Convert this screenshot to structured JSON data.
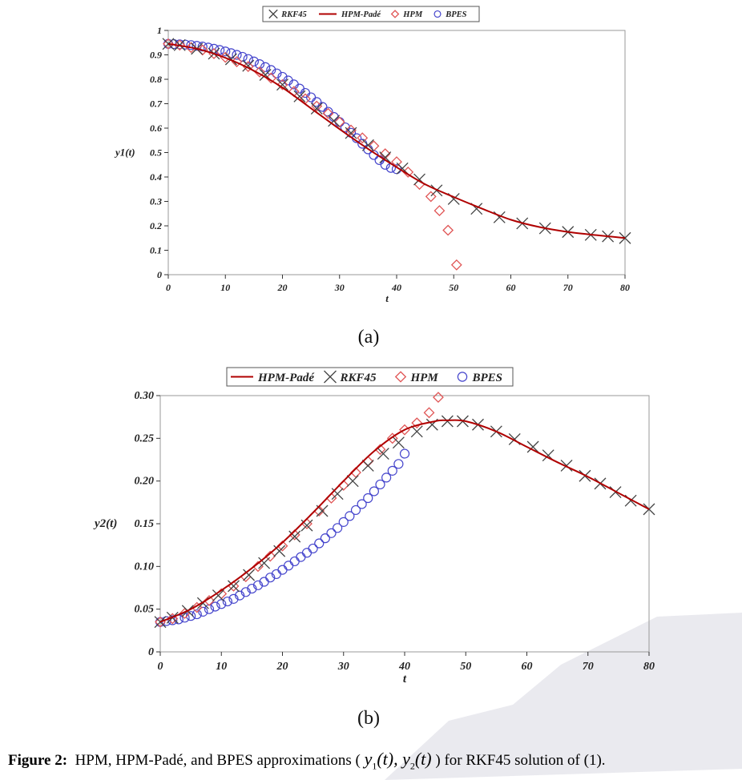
{
  "figure": {
    "label_a": "(a)",
    "label_b": "(b)",
    "caption_prefix": "Figure 2:",
    "caption_text": "HPM, HPM-Padé, and BPES approximations (",
    "caption_math": "y1(t), y2(t)",
    "caption_suffix": ") for RKF45 solution of (1)."
  },
  "chart_data": [
    {
      "type": "line",
      "panel": "a",
      "xlabel": "t",
      "ylabel": "y1(t)",
      "xlim": [
        0,
        80
      ],
      "ylim": [
        0,
        1
      ],
      "x_ticks": [
        "0",
        "10",
        "20",
        "30",
        "40",
        "50",
        "60",
        "70",
        "80"
      ],
      "y_ticks": [
        "0",
        "0.1",
        "0.2",
        "0.3",
        "0.4",
        "0.5",
        "0.6",
        "0.7",
        "0.8",
        "0.9",
        "1"
      ],
      "grid": false,
      "legend_position": "top-center",
      "legend": [
        "RKF45",
        "HPM-Padé",
        "HPM",
        "BPES"
      ],
      "colors": {
        "RKF45": "#444444",
        "HPM-Padé": "#b00000",
        "HPM": "#e05555",
        "BPES": "#4444cc"
      },
      "series": [
        {
          "name": "HPM-Padé",
          "style": "line",
          "x": [
            0,
            5,
            10,
            15,
            20,
            25,
            30,
            35,
            40,
            45,
            50,
            55,
            60,
            65,
            70,
            75,
            80
          ],
          "y": [
            0.945,
            0.925,
            0.888,
            0.835,
            0.766,
            0.681,
            0.596,
            0.515,
            0.44,
            0.37,
            0.318,
            0.27,
            0.225,
            0.195,
            0.175,
            0.162,
            0.15
          ]
        },
        {
          "name": "RKF45",
          "style": "marker-x",
          "x": [
            0,
            2,
            5,
            8,
            11,
            14,
            17,
            20,
            23,
            26,
            29,
            32,
            35,
            38,
            41,
            44,
            47,
            50,
            54,
            58,
            62,
            66,
            70,
            74,
            77,
            80
          ],
          "y": [
            0.945,
            0.94,
            0.925,
            0.905,
            0.882,
            0.855,
            0.818,
            0.778,
            0.73,
            0.68,
            0.63,
            0.58,
            0.53,
            0.48,
            0.435,
            0.39,
            0.345,
            0.31,
            0.27,
            0.235,
            0.21,
            0.19,
            0.175,
            0.163,
            0.157,
            0.15
          ]
        },
        {
          "name": "HPM",
          "style": "marker-diamond",
          "x": [
            0,
            2,
            4,
            6,
            8,
            10,
            12,
            14,
            16,
            18,
            20,
            22,
            24,
            26,
            28,
            30,
            32,
            34,
            36,
            38,
            40,
            42,
            44,
            46,
            47.5,
            49,
            50.5
          ],
          "y": [
            0.945,
            0.94,
            0.93,
            0.92,
            0.905,
            0.89,
            0.872,
            0.852,
            0.83,
            0.805,
            0.778,
            0.75,
            0.72,
            0.69,
            0.66,
            0.625,
            0.592,
            0.56,
            0.527,
            0.495,
            0.462,
            0.42,
            0.37,
            0.32,
            0.262,
            0.182,
            0.04
          ]
        },
        {
          "name": "BPES",
          "style": "marker-circle",
          "x": [
            0,
            1,
            2,
            3,
            4,
            5,
            6,
            7,
            8,
            9,
            10,
            11,
            12,
            13,
            14,
            15,
            16,
            17,
            18,
            19,
            20,
            21,
            22,
            23,
            24,
            25,
            26,
            27,
            28,
            29,
            30,
            31,
            32,
            33,
            34,
            35,
            36,
            37,
            38,
            39,
            40
          ],
          "y": [
            0.945,
            0.944,
            0.943,
            0.942,
            0.94,
            0.937,
            0.934,
            0.93,
            0.925,
            0.92,
            0.914,
            0.907,
            0.9,
            0.892,
            0.883,
            0.873,
            0.862,
            0.85,
            0.838,
            0.824,
            0.81,
            0.795,
            0.779,
            0.762,
            0.744,
            0.726,
            0.707,
            0.687,
            0.667,
            0.646,
            0.625,
            0.603,
            0.581,
            0.559,
            0.536,
            0.513,
            0.49,
            0.469,
            0.45,
            0.437,
            0.432
          ]
        }
      ]
    },
    {
      "type": "line",
      "panel": "b",
      "xlabel": "t",
      "ylabel": "y2(t)",
      "xlim": [
        0,
        80
      ],
      "ylim": [
        0,
        0.3
      ],
      "x_ticks": [
        "0",
        "10",
        "20",
        "30",
        "40",
        "50",
        "60",
        "70",
        "80"
      ],
      "y_ticks": [
        "0",
        "0.05",
        "0.10",
        "0.15",
        "0.20",
        "0.25",
        "0.30"
      ],
      "grid": false,
      "legend_position": "top-center",
      "legend": [
        "HPM-Padé",
        "RKF45",
        "HPM",
        "BPES"
      ],
      "colors": {
        "RKF45": "#444444",
        "HPM-Padé": "#b00000",
        "HPM": "#e05555",
        "BPES": "#4444cc"
      },
      "series": [
        {
          "name": "HPM-Padé",
          "style": "line",
          "x": [
            0,
            5,
            10,
            15,
            20,
            25,
            30,
            35,
            40,
            45,
            47,
            50,
            55,
            60,
            65,
            70,
            75,
            80
          ],
          "y": [
            0.035,
            0.05,
            0.072,
            0.098,
            0.128,
            0.163,
            0.2,
            0.235,
            0.26,
            0.27,
            0.271,
            0.27,
            0.258,
            0.24,
            0.222,
            0.205,
            0.186,
            0.167
          ]
        },
        {
          "name": "RKF45",
          "style": "marker-x",
          "x": [
            0,
            2,
            4.5,
            7,
            9.5,
            12,
            14.5,
            17,
            19.5,
            22,
            24,
            26.5,
            29,
            31.5,
            34,
            36.5,
            39,
            42,
            44.5,
            47,
            49.5,
            52,
            55,
            58,
            61,
            63.5,
            66.5,
            69.5,
            72,
            74.5,
            77,
            80
          ],
          "y": [
            0.035,
            0.04,
            0.048,
            0.057,
            0.066,
            0.077,
            0.09,
            0.104,
            0.118,
            0.135,
            0.148,
            0.165,
            0.185,
            0.2,
            0.218,
            0.232,
            0.245,
            0.258,
            0.266,
            0.27,
            0.27,
            0.266,
            0.258,
            0.249,
            0.24,
            0.23,
            0.218,
            0.206,
            0.197,
            0.187,
            0.177,
            0.167
          ]
        },
        {
          "name": "HPM",
          "style": "marker-diamond",
          "x": [
            0,
            2,
            4,
            6,
            8,
            10,
            12,
            14,
            16,
            18,
            20,
            22,
            24,
            26,
            28,
            30,
            32,
            34,
            36,
            38,
            40,
            42,
            44,
            45.5
          ],
          "y": [
            0.035,
            0.039,
            0.045,
            0.052,
            0.06,
            0.068,
            0.077,
            0.088,
            0.1,
            0.112,
            0.124,
            0.137,
            0.15,
            0.165,
            0.18,
            0.195,
            0.21,
            0.223,
            0.237,
            0.25,
            0.26,
            0.268,
            0.28,
            0.298
          ]
        },
        {
          "name": "BPES",
          "style": "marker-circle",
          "x": [
            0,
            1,
            2,
            3,
            4,
            5,
            6,
            7,
            8,
            9,
            10,
            11,
            12,
            13,
            14,
            15,
            16,
            17,
            18,
            19,
            20,
            21,
            22,
            23,
            24,
            25,
            26,
            27,
            28,
            29,
            30,
            31,
            32,
            33,
            34,
            35,
            36,
            37,
            38,
            39,
            40
          ],
          "y": [
            0.035,
            0.036,
            0.037,
            0.038,
            0.04,
            0.042,
            0.044,
            0.047,
            0.05,
            0.053,
            0.056,
            0.059,
            0.062,
            0.066,
            0.07,
            0.074,
            0.078,
            0.082,
            0.087,
            0.091,
            0.096,
            0.101,
            0.106,
            0.111,
            0.116,
            0.121,
            0.127,
            0.133,
            0.139,
            0.145,
            0.152,
            0.159,
            0.166,
            0.173,
            0.18,
            0.188,
            0.196,
            0.204,
            0.212,
            0.22,
            0.232
          ]
        }
      ]
    }
  ]
}
